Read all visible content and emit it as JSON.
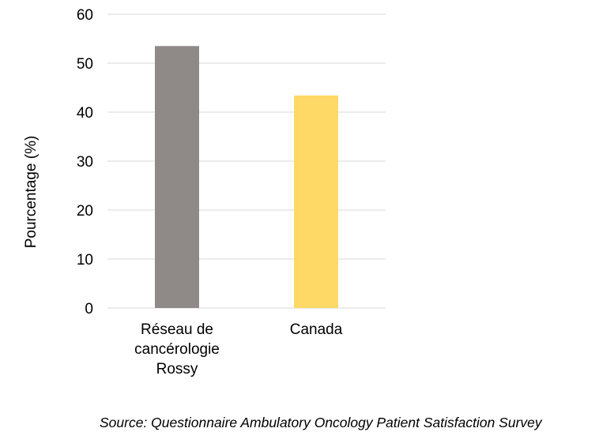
{
  "chart_data": {
    "type": "bar",
    "categories": [
      [
        "Réseau de",
        "cancérologie",
        "Rossy"
      ],
      [
        "Canada"
      ]
    ],
    "values": [
      53.5,
      43.4
    ],
    "bar_colors": [
      "#8f8a88",
      "#ffd966"
    ],
    "gridline_color": "#d9d9d9",
    "ylabel": "Pourcentage (%)",
    "xlabel": "",
    "ylim": [
      0,
      60
    ],
    "yticks": [
      0,
      10,
      20,
      30,
      40,
      50,
      60
    ],
    "grid": true,
    "legend": "none"
  },
  "source_note": "Source: Questionnaire Ambulatory Oncology Patient Satisfaction Survey"
}
